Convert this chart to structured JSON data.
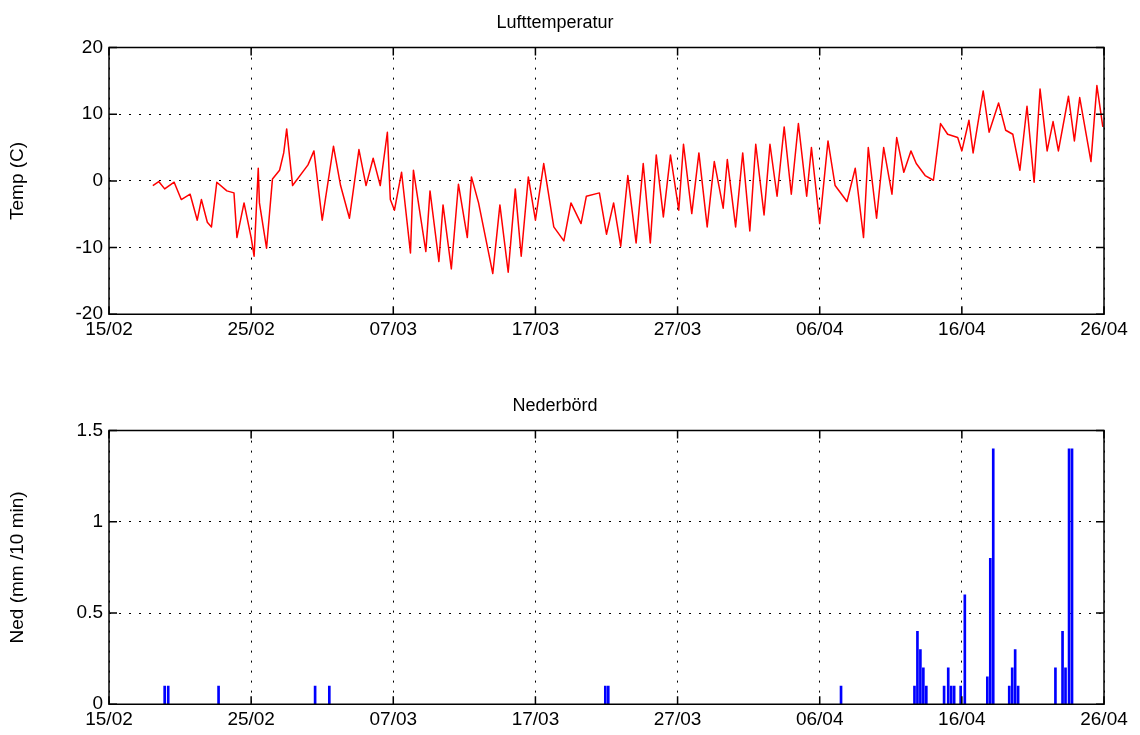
{
  "chart_data": [
    {
      "type": "line",
      "title": "Lufttemperatur",
      "ylabel": "Temp (C)",
      "color": "#ff0000",
      "grid": true,
      "xlim": [
        "--02-15",
        "--04-26"
      ],
      "xticks": [
        {
          "value": "--02-15",
          "label": "15/02"
        },
        {
          "value": "--02-25",
          "label": "25/02"
        },
        {
          "value": "--03-07",
          "label": "07/03"
        },
        {
          "value": "--03-17",
          "label": "17/03"
        },
        {
          "value": "--03-27",
          "label": "27/03"
        },
        {
          "value": "--04-06",
          "label": "06/04"
        },
        {
          "value": "--04-16",
          "label": "16/04"
        },
        {
          "value": "--04-26",
          "label": "26/04"
        }
      ],
      "ylim": [
        -20,
        20
      ],
      "yticks": [
        -20,
        -10,
        0,
        10,
        20
      ],
      "x": [
        "--02-18T02:00",
        "--02-18T12:00",
        "--02-18T22:00",
        "--02-19T14:00",
        "--02-20T02:00",
        "--02-20T17:00",
        "--02-21T05:00",
        "--02-21T12:00",
        "--02-21T22:00",
        "--02-22T05:00",
        "--02-22T14:00",
        "--02-23T07:00",
        "--02-23T19:00",
        "--02-24T00:00",
        "--02-24T12:00",
        "--02-25T00:00",
        "--02-25T05:00",
        "--02-25T12:00",
        "--02-25T14:00",
        "--02-26T02:00",
        "--02-26T12:00",
        "--02-27T00:00",
        "--02-27T07:00",
        "--02-27T12:00",
        "--02-27T22:00",
        "--03-01T00:00",
        "--03-01T10:00",
        "--03-02T00:00",
        "--03-02T19:00",
        "--03-03T07:00",
        "--03-03T22:00",
        "--03-04T14:00",
        "--03-05T02:00",
        "--03-05T14:00",
        "--03-06T02:00",
        "--03-06T14:00",
        "--03-06T19:00",
        "--03-07T02:00",
        "--03-07T14:00",
        "--03-08T05:00",
        "--03-08T10:00",
        "--03-09T07:00",
        "--03-09T14:00",
        "--03-10T05:00",
        "--03-10T12:00",
        "--03-11T02:00",
        "--03-11T14:00",
        "--03-12T05:00",
        "--03-12T12:00",
        "--03-13T00:00",
        "--03-14T00:00",
        "--03-14T12:00",
        "--03-15T02:00",
        "--03-15T14:00",
        "--03-16T00:00",
        "--03-16T12:00",
        "--03-17T00:00",
        "--03-17T14:00",
        "--03-18T07:00",
        "--03-19T00:00",
        "--03-19T12:00",
        "--03-20T05:00",
        "--03-20T14:00",
        "--03-21T12:00",
        "--03-22T00:00",
        "--03-22T12:00",
        "--03-23T00:00",
        "--03-23T12:00",
        "--03-24T02:00",
        "--03-24T14:00",
        "--03-25T02:00",
        "--03-25T12:00",
        "--03-26T00:00",
        "--03-26T12:00",
        "--03-27T02:00",
        "--03-27T10:00",
        "--03-28T00:00",
        "--03-28T12:00",
        "--03-29T02:00",
        "--03-29T14:00",
        "--03-30T05:00",
        "--03-30T12:00",
        "--03-31T02:00",
        "--03-31T14:00",
        "--04-01T02:00",
        "--04-01T12:00",
        "--04-02T02:00",
        "--04-02T12:00",
        "--04-03T00:00",
        "--04-03T12:00",
        "--04-04T00:00",
        "--04-04T12:00",
        "--04-05T02:00",
        "--04-05T10:00",
        "--04-06T00:00",
        "--04-06T14:00",
        "--04-07T02:00",
        "--04-07T22:00",
        "--04-08T12:00",
        "--04-09T02:00",
        "--04-09T10:00",
        "--04-10T00:00",
        "--04-10T12:00",
        "--04-11T02:00",
        "--04-11T10:00",
        "--04-11T22:00",
        "--04-12T10:00",
        "--04-12T19:00",
        "--04-13T10:00",
        "--04-14T00:00",
        "--04-14T12:00",
        "--04-15T00:00",
        "--04-15T17:00",
        "--04-16T00:00",
        "--04-16T12:00",
        "--04-16T19:00",
        "--04-17T12:00",
        "--04-17T22:00",
        "--04-18T14:00",
        "--04-19T02:00",
        "--04-19T14:00",
        "--04-20T02:00",
        "--04-20T14:00",
        "--04-21T02:00",
        "--04-21T12:00",
        "--04-22T00:00",
        "--04-22T10:00",
        "--04-22T19:00",
        "--04-23T12:00",
        "--04-23T22:00",
        "--04-24T07:00",
        "--04-25T02:00",
        "--04-25T12:00",
        "--04-25T22:00"
      ],
      "values": [
        -0.7,
        -0.1,
        -1.2,
        -0.2,
        -2.8,
        -2.0,
        -5.9,
        -2.8,
        -6.2,
        -6.9,
        -0.2,
        -1.5,
        -1.8,
        -8.5,
        -3.3,
        -8.5,
        -11.3,
        1.9,
        -3.3,
        -10.1,
        0.3,
        1.6,
        4.2,
        7.8,
        -0.7,
        2.4,
        4.5,
        -5.9,
        5.2,
        -0.7,
        -5.6,
        4.7,
        -0.7,
        3.4,
        -0.7,
        7.3,
        -2.8,
        -4.4,
        1.3,
        -10.8,
        1.6,
        -10.6,
        -1.5,
        -12.1,
        -3.6,
        -13.2,
        -0.5,
        -8.5,
        0.6,
        -3.3,
        -13.9,
        -3.6,
        -13.7,
        -1.2,
        -11.3,
        0.6,
        -5.9,
        2.6,
        -6.9,
        -9.0,
        -3.3,
        -6.4,
        -2.3,
        -1.8,
        -8.0,
        -3.3,
        -9.8,
        0.8,
        -9.3,
        2.6,
        -9.3,
        3.9,
        -5.4,
        3.9,
        -4.4,
        5.5,
        -4.9,
        4.2,
        -6.9,
        2.9,
        -4.1,
        3.2,
        -6.9,
        4.2,
        -7.5,
        5.5,
        -5.1,
        5.5,
        -2.3,
        8.1,
        -2.0,
        8.6,
        -2.3,
        5.0,
        -6.4,
        6.0,
        -0.7,
        -3.1,
        1.9,
        -8.5,
        5.0,
        -5.6,
        5.0,
        -2.0,
        6.5,
        1.3,
        4.5,
        2.6,
        0.8,
        0.1,
        8.6,
        7.0,
        6.5,
        4.5,
        9.1,
        4.2,
        13.5,
        7.3,
        11.7,
        7.6,
        7.0,
        1.6,
        11.2,
        -0.2,
        13.8,
        4.5,
        8.9,
        4.5,
        12.7,
        6.0,
        12.5,
        2.9,
        14.3,
        8.1
      ]
    },
    {
      "type": "bar",
      "title": "Nederbörd",
      "ylabel": "Ned (mm /10 min)",
      "color": "#0000ff",
      "grid": true,
      "xlim": [
        "--02-15",
        "--04-26"
      ],
      "xticks": [
        {
          "value": "--02-15",
          "label": "15/02"
        },
        {
          "value": "--02-25",
          "label": "25/02"
        },
        {
          "value": "--03-07",
          "label": "07/03"
        },
        {
          "value": "--03-17",
          "label": "17/03"
        },
        {
          "value": "--03-27",
          "label": "27/03"
        },
        {
          "value": "--04-06",
          "label": "06/04"
        },
        {
          "value": "--04-16",
          "label": "16/04"
        },
        {
          "value": "--04-26",
          "label": "26/04"
        }
      ],
      "ylim": [
        0,
        1.5
      ],
      "yticks": [
        0,
        0.5,
        1,
        1.5
      ],
      "x": [
        "--02-18T22:00",
        "--02-19T04:00",
        "--02-22T17:00",
        "--03-01T12:00",
        "--03-02T12:00",
        "--03-21T22:00",
        "--03-22T03:00",
        "--04-07T12:00",
        "--04-12T16:00",
        "--04-12T21:00",
        "--04-13T02:00",
        "--04-13T07:00",
        "--04-13T12:00",
        "--04-14T18:00",
        "--04-15T01:00",
        "--04-15T06:00",
        "--04-15T11:00",
        "--04-15T22:00",
        "--04-16T05:00",
        "--04-17T19:00",
        "--04-18T00:00",
        "--04-18T05:00",
        "--04-19T08:00",
        "--04-19T13:00",
        "--04-19T18:00",
        "--04-19T23:00",
        "--04-22T14:00",
        "--04-23T02:00",
        "--04-23T07:00",
        "--04-23T13:00",
        "--04-23T18:00"
      ],
      "values": [
        0.1,
        0.1,
        0.1,
        0.1,
        0.1,
        0.1,
        0.1,
        0.1,
        0.1,
        0.4,
        0.3,
        0.2,
        0.1,
        0.1,
        0.2,
        0.1,
        0.1,
        0.1,
        0.6,
        0.15,
        0.8,
        1.4,
        0.1,
        0.2,
        0.3,
        0.1,
        0.2,
        0.4,
        0.2,
        1.4,
        1.4
      ]
    }
  ]
}
